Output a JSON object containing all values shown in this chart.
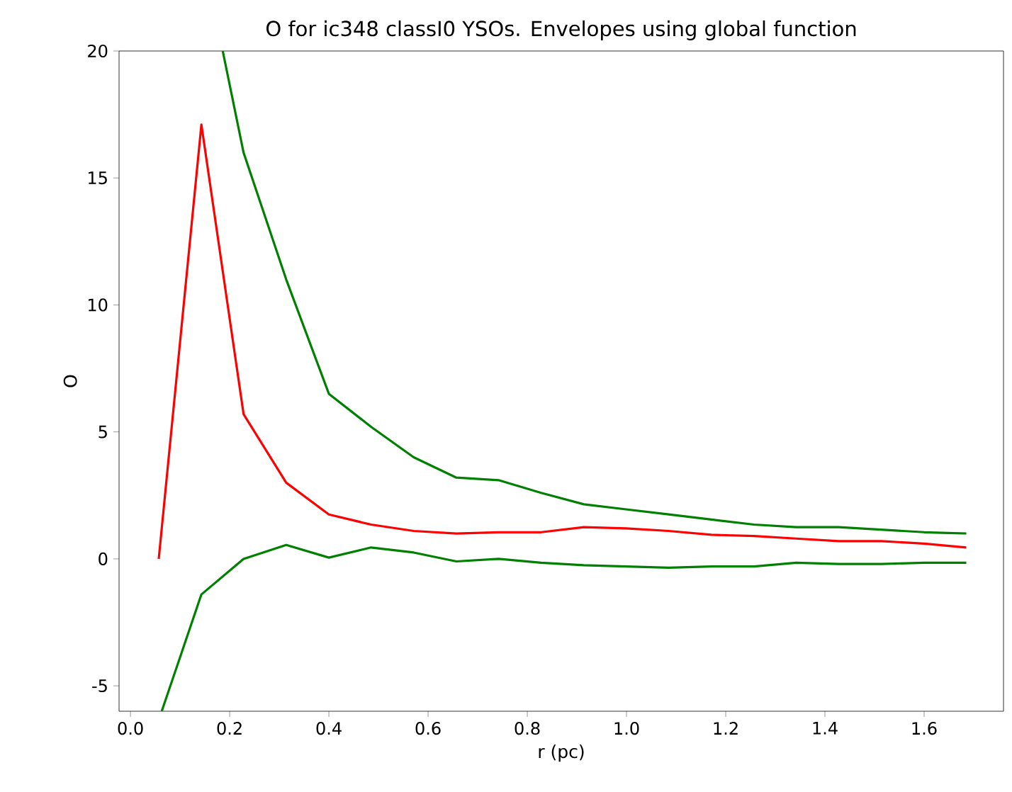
{
  "chart_data": {
    "type": "line",
    "title": "O for ic348 classI0 YSOs. Envelopes using global function",
    "xlabel": "r (pc)",
    "ylabel": "O",
    "xlim": [
      -0.023,
      1.76
    ],
    "ylim": [
      -6,
      20
    ],
    "xticks": [
      {
        "value": 0,
        "label": "0.0"
      },
      0.2,
      0.4,
      0.6,
      0.8,
      {
        "value": 1,
        "label": "1.0"
      },
      1.2,
      1.4,
      1.6
    ],
    "yticks": [
      -5,
      0,
      5,
      10,
      15,
      20
    ],
    "marker": "none",
    "line_style": "solid",
    "series": [
      {
        "color": "#ff0000",
        "x": [
          0.057,
          0.143,
          0.228,
          0.314,
          0.4,
          0.485,
          0.571,
          0.657,
          0.742,
          0.828,
          0.914,
          0.999,
          1.085,
          1.171,
          1.257,
          1.342,
          1.428,
          1.514,
          1.6,
          1.685
        ],
        "values": [
          0,
          17.1,
          5.7,
          3.0,
          1.75,
          1.35,
          1.1,
          1.0,
          1.05,
          1.05,
          1.25,
          1.2,
          1.1,
          0.95,
          0.9,
          0.8,
          0.7,
          0.7,
          0.6,
          0.45
        ]
      },
      {
        "color": "#008000",
        "x": [
          0.186,
          0.228,
          0.314,
          0.4,
          0.485,
          0.571,
          0.657,
          0.742,
          0.828,
          0.914,
          0.999,
          1.085,
          1.171,
          1.257,
          1.342,
          1.428,
          1.514,
          1.6,
          1.685
        ],
        "values": [
          20,
          16.0,
          11.0,
          6.5,
          5.2,
          4.0,
          3.2,
          3.1,
          2.6,
          2.15,
          1.95,
          1.75,
          1.55,
          1.35,
          1.25,
          1.25,
          1.15,
          1.05,
          1.0
        ]
      },
      {
        "color": "#008000",
        "x": [
          0.063,
          0.143,
          0.228,
          0.314,
          0.4,
          0.485,
          0.571,
          0.657,
          0.742,
          0.828,
          0.914,
          0.999,
          1.085,
          1.171,
          1.257,
          1.342,
          1.428,
          1.514,
          1.6,
          1.685
        ],
        "values": [
          -6,
          -1.4,
          0.0,
          0.55,
          0.05,
          0.45,
          0.25,
          -0.1,
          0.0,
          -0.15,
          -0.25,
          -0.3,
          -0.35,
          -0.3,
          -0.3,
          -0.15,
          -0.2,
          -0.2,
          -0.15,
          -0.15
        ]
      }
    ]
  }
}
